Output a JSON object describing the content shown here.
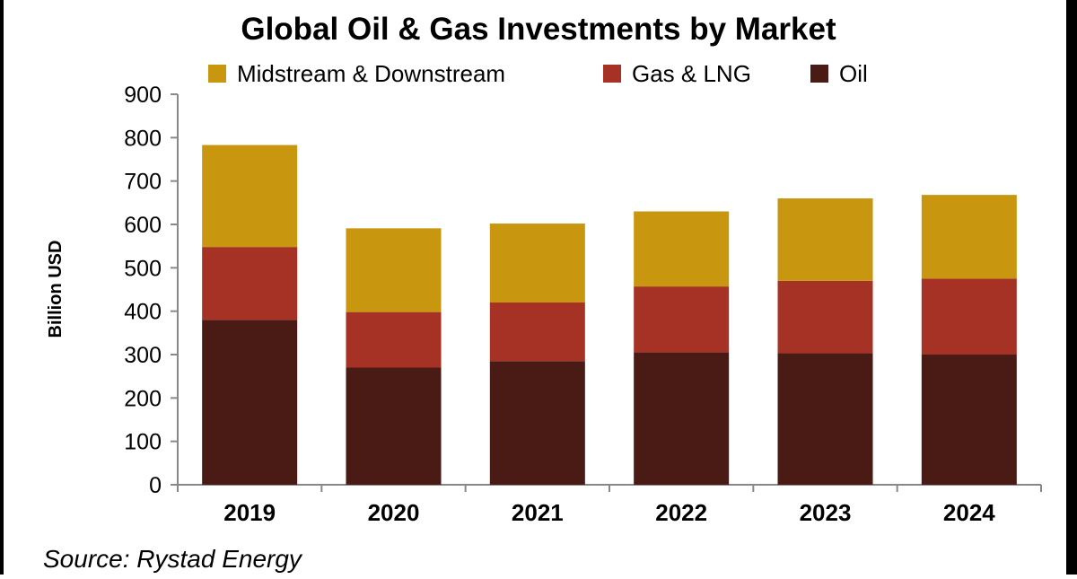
{
  "chart_data": {
    "type": "bar",
    "stacked": true,
    "title": "Global Oil & Gas Investments by Market",
    "xlabel": "",
    "ylabel": "Billion USD",
    "ylim": [
      0,
      900
    ],
    "yticks": [
      0,
      100,
      200,
      300,
      400,
      500,
      600,
      700,
      800,
      900
    ],
    "categories": [
      "2019",
      "2020",
      "2021",
      "2022",
      "2023",
      "2024"
    ],
    "series": [
      {
        "name": "Oil",
        "color": "#4a1a14",
        "values": [
          380,
          270,
          285,
          305,
          303,
          300
        ]
      },
      {
        "name": "Gas & LNG",
        "color": "#a53224",
        "values": [
          168,
          128,
          135,
          152,
          167,
          175
        ]
      },
      {
        "name": "Midstream & Downstream",
        "color": "#c8960f",
        "values": [
          235,
          193,
          182,
          173,
          190,
          193
        ]
      }
    ],
    "legend_order": [
      "Midstream & Downstream",
      "Gas & LNG",
      "Oil"
    ],
    "legend_position": "top",
    "grid": false,
    "source": "Source: Rystad Energy"
  }
}
